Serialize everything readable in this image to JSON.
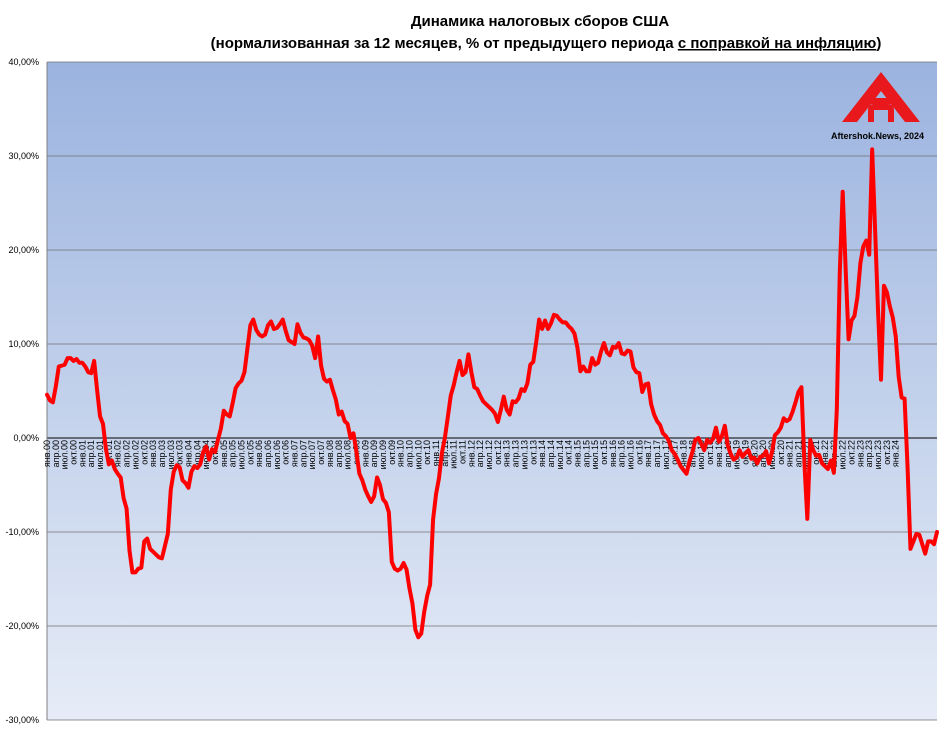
{
  "chart_data": {
    "type": "line",
    "title": "Динамика налоговых сборов США",
    "subtitle_plain": "(нормализованная за 12 месяцев, % от предыдущего периода ",
    "subtitle_underlined": "с поправкой на инфляцию",
    "subtitle_close": ")",
    "xlabel": "",
    "ylabel": "",
    "ylim": [
      -30,
      40
    ],
    "y_ticks": [
      "40,00%",
      "30,00%",
      "20,00%",
      "10,00%",
      "0,00%",
      "-10,00%",
      "-20,00%",
      "-30,00%"
    ],
    "y_tick_values": [
      40,
      30,
      20,
      10,
      0,
      -10,
      -20,
      -30
    ],
    "x_ticks": [
      "янв.00",
      "апр.00",
      "июл.00",
      "окт.00",
      "янв.01",
      "апр.01",
      "июл.01",
      "окт.01",
      "янв.02",
      "апр.02",
      "июл.02",
      "окт.02",
      "янв.03",
      "апр.03",
      "июл.03",
      "окт.03",
      "янв.04",
      "апр.04",
      "июл.04",
      "окт.04",
      "янв.05",
      "апр.05",
      "июл.05",
      "окт.05",
      "янв.06",
      "апр.06",
      "июл.06",
      "окт.06",
      "янв.07",
      "апр.07",
      "июл.07",
      "окт.07",
      "янв.08",
      "апр.08",
      "июл.08",
      "окт.08",
      "янв.09",
      "апр.09",
      "июл.09",
      "окт.09",
      "янв.10",
      "апр.10",
      "июл.10",
      "окт.10",
      "янв.11",
      "апр.11",
      "июл.11",
      "окт.11",
      "янв.12",
      "апр.12",
      "июл.12",
      "окт.12",
      "янв.13",
      "апр.13",
      "июл.13",
      "окт.13",
      "янв.14",
      "апр.14",
      "июл.14",
      "окт.14",
      "янв.15",
      "апр.15",
      "июл.15",
      "окт.15",
      "янв.16",
      "апр.16",
      "июл.16",
      "окт.16",
      "янв.17",
      "апр.17",
      "июл.17",
      "окт.17",
      "янв.18",
      "апр.18",
      "июл.18",
      "окт.18",
      "янв.19",
      "апр.19",
      "июл.19",
      "окт.19",
      "янв.20",
      "апр.20",
      "июл.20",
      "окт.20",
      "янв.21",
      "апр.21",
      "июл.21",
      "окт.21",
      "янв.22",
      "апр.22",
      "июл.22",
      "окт.22",
      "янв.23",
      "апр.23",
      "июл.23",
      "окт.23",
      "янв.24"
    ],
    "grid": true,
    "legend": "none",
    "line_color": "#ff0000",
    "series": [
      {
        "values": [
          4.6,
          4.0,
          3.8,
          5.5,
          7.6,
          7.7,
          7.8,
          8.5,
          8.5,
          8.2,
          8.4,
          8.0,
          8.0,
          7.6,
          7.0,
          6.9,
          8.2,
          5.1,
          2.3,
          1.5,
          -1.2,
          -2.8,
          -2.4,
          -3.3,
          -3.8,
          -4.2,
          -6.4,
          -7.5,
          -12.0,
          -14.3,
          -14.3,
          -13.9,
          -13.8,
          -11.0,
          -10.7,
          -11.8,
          -12.1,
          -12.4,
          -12.7,
          -12.8,
          -11.5,
          -10.2,
          -5.5,
          -3.6,
          -2.9,
          -3.1,
          -4.5,
          -4.8,
          -5.3,
          -3.6,
          -3.0,
          -3.2,
          -2.8,
          -1.5,
          -0.9,
          -2.3,
          -1.2,
          -1.5,
          -0.2,
          1.0,
          2.9,
          2.5,
          2.3,
          3.7,
          5.3,
          5.8,
          6.1,
          7.0,
          9.5,
          12.0,
          12.6,
          11.5,
          11.0,
          10.8,
          11.0,
          12.0,
          12.4,
          11.6,
          11.7,
          12.1,
          12.6,
          11.4,
          10.4,
          10.2,
          10.0,
          12.1,
          11.2,
          10.7,
          10.6,
          10.4,
          9.8,
          8.5,
          10.8,
          7.7,
          6.3,
          6.0,
          6.2,
          5.1,
          4.1,
          2.5,
          2.8,
          1.8,
          1.5,
          0.0,
          0.5,
          -1.5,
          -3.8,
          -4.5,
          -5.5,
          -6.2,
          -6.8,
          -6.2,
          -4.2,
          -5.0,
          -6.5,
          -6.9,
          -7.9,
          -13.2,
          -13.9,
          -14.1,
          -13.9,
          -13.3,
          -14.0,
          -16.0,
          -17.6,
          -20.4,
          -21.2,
          -20.8,
          -18.5,
          -16.8,
          -15.6,
          -8.7,
          -6.0,
          -4.3,
          -1.6,
          0.0,
          2.2,
          4.5,
          5.6,
          7.0,
          8.2,
          6.7,
          7.0,
          8.9,
          7.0,
          5.4,
          5.2,
          4.5,
          3.9,
          3.6,
          3.3,
          3.0,
          2.6,
          1.7,
          3.0,
          4.4,
          3.0,
          2.5,
          3.9,
          3.8,
          4.2,
          5.2,
          5.0,
          5.8,
          7.8,
          8.1,
          10.2,
          12.6,
          11.6,
          12.5,
          11.6,
          12.2,
          13.1,
          13.0,
          12.6,
          12.3,
          12.3,
          11.9,
          11.6,
          11.1,
          9.6,
          7.1,
          7.6,
          7.1,
          7.1,
          8.5,
          7.8,
          8.0,
          9.2,
          10.1,
          9.1,
          8.8,
          9.7,
          9.6,
          10.1,
          9.0,
          8.9,
          9.3,
          9.2,
          7.5,
          7.0,
          6.9,
          4.9,
          5.7,
          5.8,
          3.6,
          2.5,
          1.8,
          1.4,
          0.5,
          0.2,
          -0.3,
          -1.3,
          -1.7,
          -2.3,
          -3.0,
          -3.4,
          -3.8,
          -2.5,
          -1.5,
          -0.2,
          0.0,
          -0.6,
          -1.3,
          -0.2,
          -0.5,
          -0.1,
          1.1,
          -0.4,
          0.2,
          1.3,
          -0.8,
          -1.7,
          -2.3,
          -2.1,
          -1.3,
          -2.0,
          -1.6,
          -1.3,
          -2.2,
          -2.1,
          -2.7,
          -2.0,
          -1.9,
          -1.4,
          -2.7,
          -1.5,
          0.3,
          0.6,
          1.1,
          2.1,
          1.8,
          2.0,
          2.8,
          3.8,
          4.9,
          5.4,
          -2.6,
          -8.6,
          -0.2,
          -1.3,
          -1.9,
          -1.8,
          -2.7,
          -3.0,
          -3.3,
          -2.4,
          -3.7,
          3.0,
          17.5,
          26.2,
          18.0,
          10.5,
          12.5,
          13.0,
          15.0,
          18.6,
          20.4,
          21.0,
          19.5,
          30.7,
          22.1,
          13.5,
          6.2,
          16.2,
          15.5,
          14.0,
          12.8,
          10.8,
          6.5,
          4.3,
          4.2,
          -3.0,
          -11.8,
          -11.0,
          -10.2,
          -10.3,
          -11.3,
          -12.3,
          -11.0,
          -11.0,
          -11.3,
          -10.0
        ]
      }
    ]
  },
  "watermark": {
    "text": "Aftershok.News, 2024",
    "logo_color": "#e8181d"
  }
}
